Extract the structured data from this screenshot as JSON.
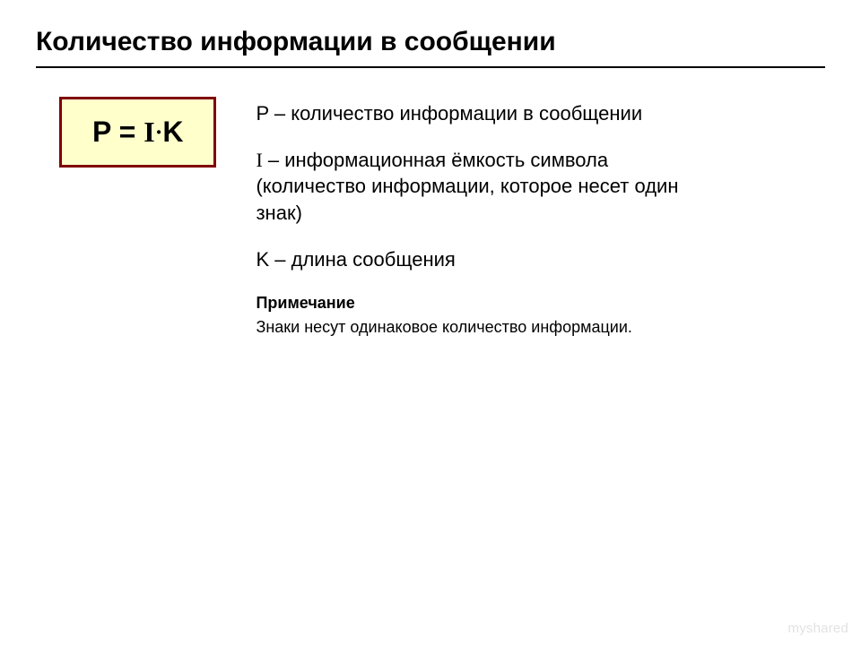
{
  "title": "Количество информации в сообщении",
  "formula": {
    "lhs": "P",
    "eq": " = ",
    "I": "I",
    "dot": "·",
    "K": "K",
    "box_border_color": "#800000",
    "box_background": "#ffffcc",
    "font_size_pt": 32
  },
  "definitions": {
    "p_def": "P – количество информации в сообщении",
    "i_symbol": "I",
    "i_def_tail": " – информационная ёмкость символа (количество информации, которое несет один знак)",
    "k_def": "K – длина сообщения"
  },
  "note": {
    "heading": "Примечание",
    "body": " Знаки несут одинаковое количество информации."
  },
  "watermark": "myshared",
  "style": {
    "background_color": "#ffffff",
    "title_fontsize_pt": 30,
    "body_fontsize_pt": 22,
    "note_fontsize_pt": 18,
    "hr_color": "#000000",
    "text_color": "#000000",
    "watermark_color": "#e2e2e2"
  }
}
